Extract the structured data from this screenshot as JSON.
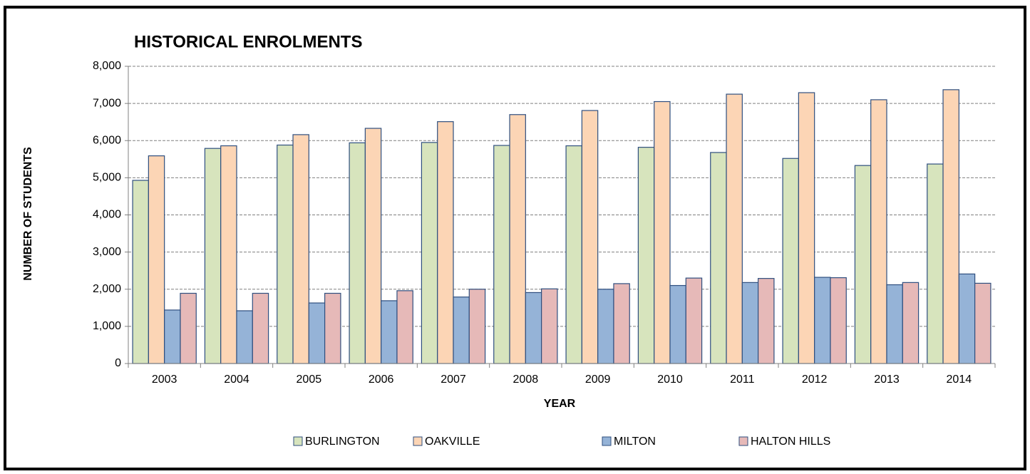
{
  "chart_data": {
    "type": "bar",
    "title": "HISTORICAL ENROLMENTS",
    "xlabel": "YEAR",
    "ylabel": "NUMBER OF STUDENTS",
    "categories": [
      "2003",
      "2004",
      "2005",
      "2006",
      "2007",
      "2008",
      "2009",
      "2010",
      "2011",
      "2012",
      "2013",
      "2014"
    ],
    "series": [
      {
        "name": "BURLINGTON",
        "color": "#d7e4bd",
        "values": [
          4930,
          5790,
          5880,
          5940,
          5950,
          5870,
          5860,
          5820,
          5680,
          5520,
          5330,
          5370
        ]
      },
      {
        "name": "OAKVILLE",
        "color": "#fcd5b5",
        "values": [
          5590,
          5860,
          6160,
          6330,
          6510,
          6700,
          6810,
          7050,
          7250,
          7290,
          7100,
          7370
        ]
      },
      {
        "name": "MILTON",
        "color": "#95b3d7",
        "values": [
          1440,
          1420,
          1630,
          1690,
          1790,
          1910,
          2000,
          2100,
          2180,
          2320,
          2120,
          2410
        ]
      },
      {
        "name": "HALTON HILLS",
        "color": "#e6b9b8",
        "values": [
          1890,
          1890,
          1890,
          1960,
          2000,
          2010,
          2150,
          2300,
          2290,
          2310,
          2180,
          2160
        ]
      }
    ],
    "ylim": [
      0,
      8000
    ],
    "yticks": [
      0,
      {
        "value": 1000,
        "label": "1,000"
      },
      {
        "value": 2000,
        "label": "2,000"
      },
      {
        "value": 3000,
        "label": "3,000"
      },
      {
        "value": 4000,
        "label": "4,000"
      },
      {
        "value": 5000,
        "label": "5,000"
      },
      {
        "value": 6000,
        "label": "6,000"
      },
      {
        "value": 7000,
        "label": "7,000"
      },
      {
        "value": 8000,
        "label": "8,000"
      }
    ],
    "grid": true,
    "legend": "bottom"
  }
}
